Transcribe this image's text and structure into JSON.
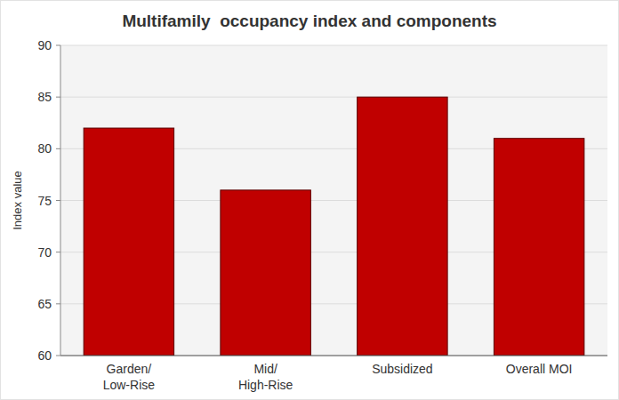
{
  "chart_data": {
    "type": "bar",
    "title": "Multifamily  occupancy index and components",
    "y_label": "Index value",
    "categories": [
      "Garden/\nLow-Rise",
      "Mid/\nHigh-Rise",
      "Subsidized",
      "Overall MOI"
    ],
    "values": [
      82,
      76,
      85,
      81
    ],
    "color": "#c00000",
    "ylim": [
      60,
      90
    ],
    "yticks": [
      60,
      65,
      70,
      75,
      80,
      85,
      90
    ],
    "grid": true
  }
}
